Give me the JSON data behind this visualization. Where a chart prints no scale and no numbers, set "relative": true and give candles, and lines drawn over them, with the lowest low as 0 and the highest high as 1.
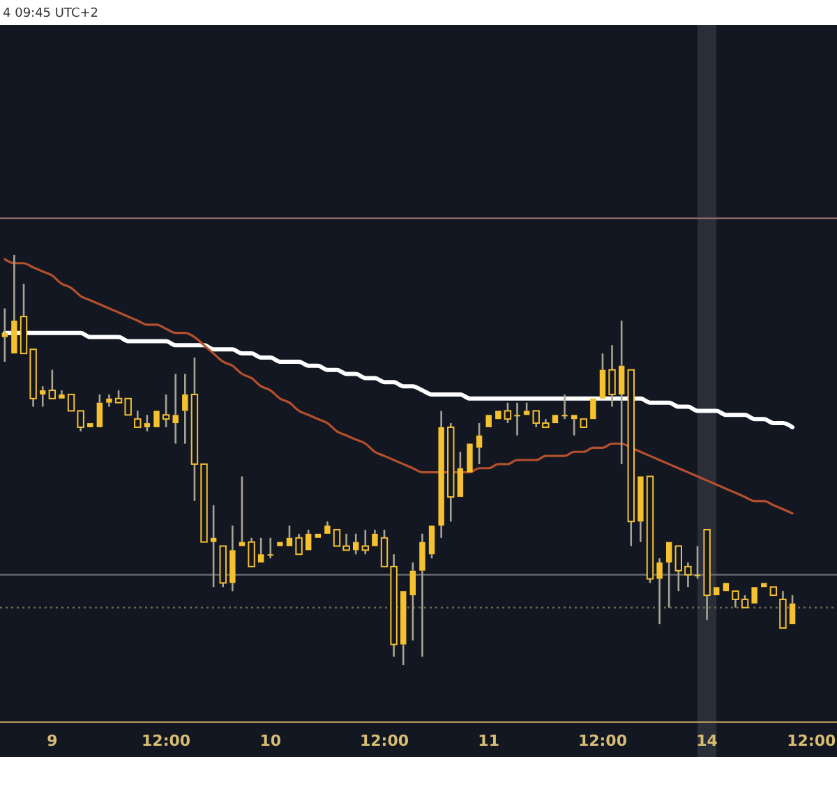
{
  "chart_data": {
    "type": "candlestick",
    "relative": true,
    "color": "#f5c12e",
    "annotations": [
      "4 09:45 UTC+2"
    ],
    "categories": [
      null,
      null,
      null,
      null,
      null,
      "9",
      null,
      null,
      null,
      null,
      null,
      null,
      null,
      null,
      null,
      null,
      null,
      "12:00",
      null,
      null,
      null,
      null,
      null,
      null,
      null,
      null,
      null,
      null,
      "10",
      null,
      null,
      null,
      null,
      null,
      null,
      null,
      null,
      null,
      null,
      null,
      "12:00",
      null,
      null,
      null,
      null,
      null,
      null,
      null,
      null,
      null,
      null,
      "11",
      null,
      null,
      null,
      null,
      null,
      null,
      null,
      null,
      null,
      null,
      null,
      "12:00",
      null,
      null,
      null,
      null,
      null,
      null,
      null,
      null,
      null,
      null,
      "14",
      null,
      null,
      null,
      null,
      null,
      null,
      null,
      null,
      null,
      null,
      "12:00"
    ],
    "ohlc": [
      [
        0.8,
        0.87,
        0.74,
        0.81
      ],
      [
        0.76,
        1.0,
        0.76,
        0.84
      ],
      [
        0.85,
        0.93,
        0.76,
        0.76
      ],
      [
        0.77,
        0.77,
        0.63,
        0.65
      ],
      [
        0.66,
        0.68,
        0.63,
        0.67
      ],
      [
        0.67,
        0.72,
        0.65,
        0.65
      ],
      [
        0.65,
        0.67,
        0.65,
        0.66
      ],
      [
        0.66,
        0.66,
        0.62,
        0.62
      ],
      [
        0.62,
        0.62,
        0.57,
        0.58
      ],
      [
        0.58,
        0.59,
        0.58,
        0.59
      ],
      [
        0.58,
        0.66,
        0.58,
        0.64
      ],
      [
        0.64,
        0.66,
        0.63,
        0.65
      ],
      [
        0.65,
        0.67,
        0.64,
        0.64
      ],
      [
        0.65,
        0.65,
        0.61,
        0.61
      ],
      [
        0.6,
        0.62,
        0.58,
        0.58
      ],
      [
        0.58,
        0.61,
        0.57,
        0.59
      ],
      [
        0.58,
        0.62,
        0.58,
        0.62
      ],
      [
        0.61,
        0.66,
        0.58,
        0.6
      ],
      [
        0.59,
        0.71,
        0.54,
        0.61
      ],
      [
        0.62,
        0.71,
        0.54,
        0.66
      ],
      [
        0.66,
        0.75,
        0.4,
        0.49
      ],
      [
        0.49,
        0.49,
        0.3,
        0.3
      ],
      [
        0.3,
        0.39,
        0.19,
        0.31
      ],
      [
        0.29,
        0.29,
        0.19,
        0.2
      ],
      [
        0.2,
        0.34,
        0.18,
        0.28
      ],
      [
        0.29,
        0.46,
        0.29,
        0.3
      ],
      [
        0.3,
        0.31,
        0.24,
        0.24
      ],
      [
        0.25,
        0.31,
        0.25,
        0.27
      ],
      [
        0.27,
        0.31,
        0.26,
        0.27
      ],
      [
        0.29,
        0.3,
        0.29,
        0.3
      ],
      [
        0.29,
        0.34,
        0.29,
        0.31
      ],
      [
        0.31,
        0.32,
        0.27,
        0.27
      ],
      [
        0.28,
        0.33,
        0.28,
        0.32
      ],
      [
        0.31,
        0.32,
        0.31,
        0.32
      ],
      [
        0.32,
        0.35,
        0.32,
        0.34
      ],
      [
        0.33,
        0.33,
        0.29,
        0.29
      ],
      [
        0.29,
        0.32,
        0.28,
        0.28
      ],
      [
        0.28,
        0.32,
        0.27,
        0.3
      ],
      [
        0.29,
        0.33,
        0.27,
        0.28
      ],
      [
        0.29,
        0.33,
        0.29,
        0.32
      ],
      [
        0.31,
        0.33,
        0.24,
        0.24
      ],
      [
        0.24,
        0.27,
        0.02,
        0.05
      ],
      [
        0.05,
        0.18,
        0.0,
        0.18
      ],
      [
        0.17,
        0.25,
        0.06,
        0.23
      ],
      [
        0.23,
        0.32,
        0.02,
        0.3
      ],
      [
        0.27,
        0.34,
        0.26,
        0.34
      ],
      [
        0.34,
        0.62,
        0.31,
        0.58
      ],
      [
        0.58,
        0.59,
        0.35,
        0.41
      ],
      [
        0.41,
        0.52,
        0.41,
        0.48
      ],
      [
        0.47,
        0.54,
        0.47,
        0.54
      ],
      [
        0.53,
        0.59,
        0.49,
        0.56
      ],
      [
        0.58,
        0.61,
        0.58,
        0.61
      ],
      [
        0.6,
        0.62,
        0.6,
        0.62
      ],
      [
        0.62,
        0.64,
        0.59,
        0.6
      ],
      [
        0.61,
        0.64,
        0.56,
        0.61
      ],
      [
        0.61,
        0.64,
        0.61,
        0.62
      ],
      [
        0.62,
        0.62,
        0.58,
        0.59
      ],
      [
        0.59,
        0.6,
        0.58,
        0.58
      ],
      [
        0.59,
        0.61,
        0.59,
        0.61
      ],
      [
        0.61,
        0.66,
        0.6,
        0.61
      ],
      [
        0.6,
        0.61,
        0.56,
        0.61
      ],
      [
        0.6,
        0.6,
        0.58,
        0.58
      ],
      [
        0.6,
        0.65,
        0.6,
        0.65
      ],
      [
        0.65,
        0.76,
        0.65,
        0.72
      ],
      [
        0.72,
        0.78,
        0.63,
        0.66
      ],
      [
        0.66,
        0.84,
        0.49,
        0.73
      ],
      [
        0.72,
        0.72,
        0.29,
        0.35
      ],
      [
        0.35,
        0.46,
        0.3,
        0.46
      ],
      [
        0.46,
        0.46,
        0.2,
        0.21
      ],
      [
        0.21,
        0.26,
        0.1,
        0.25
      ],
      [
        0.25,
        0.3,
        0.14,
        0.3
      ],
      [
        0.29,
        0.29,
        0.18,
        0.23
      ],
      [
        0.24,
        0.25,
        0.19,
        0.22
      ],
      [
        0.22,
        0.29,
        0.21,
        0.22
      ],
      [
        0.33,
        0.33,
        0.11,
        0.17
      ],
      [
        0.17,
        0.19,
        0.17,
        0.19
      ],
      [
        0.18,
        0.2,
        0.18,
        0.2
      ],
      [
        0.18,
        0.18,
        0.14,
        0.16
      ],
      [
        0.16,
        0.17,
        0.14,
        0.14
      ],
      [
        0.15,
        0.19,
        0.15,
        0.19
      ],
      [
        0.19,
        0.2,
        0.19,
        0.2
      ],
      [
        0.19,
        0.19,
        0.17,
        0.17
      ],
      [
        0.16,
        0.18,
        0.09,
        0.09
      ],
      [
        0.1,
        0.17,
        0.1,
        0.15
      ],
      null,
      null
    ],
    "series": [
      {
        "type": "line",
        "color": "#ffffff",
        "values": [
          0.81,
          0.81,
          0.81,
          0.81,
          0.81,
          0.81,
          0.81,
          0.81,
          0.81,
          0.8,
          0.8,
          0.8,
          0.8,
          0.79,
          0.79,
          0.79,
          0.79,
          0.79,
          0.78,
          0.78,
          0.78,
          0.78,
          0.77,
          0.77,
          0.77,
          0.76,
          0.76,
          0.75,
          0.75,
          0.74,
          0.74,
          0.74,
          0.73,
          0.73,
          0.72,
          0.72,
          0.71,
          0.71,
          0.7,
          0.7,
          0.69,
          0.69,
          0.68,
          0.68,
          0.67,
          0.66,
          0.66,
          0.66,
          0.66,
          0.65,
          0.65,
          0.65,
          0.65,
          0.65,
          0.65,
          0.65,
          0.65,
          0.65,
          0.65,
          0.65,
          0.65,
          0.65,
          0.65,
          0.65,
          0.65,
          0.65,
          0.65,
          0.65,
          0.64,
          0.64,
          0.64,
          0.63,
          0.63,
          0.62,
          0.62,
          0.62,
          0.61,
          0.61,
          0.61,
          0.6,
          0.6,
          0.59,
          0.59,
          0.58,
          null,
          null
        ]
      },
      {
        "type": "line",
        "color": "#b5502c",
        "values": [
          0.99,
          0.98,
          0.98,
          0.97,
          0.96,
          0.95,
          0.93,
          0.92,
          0.9,
          0.89,
          0.88,
          0.87,
          0.86,
          0.85,
          0.84,
          0.83,
          0.83,
          0.82,
          0.81,
          0.81,
          0.8,
          0.78,
          0.76,
          0.74,
          0.73,
          0.71,
          0.7,
          0.68,
          0.67,
          0.65,
          0.64,
          0.62,
          0.61,
          0.6,
          0.59,
          0.57,
          0.56,
          0.55,
          0.54,
          0.52,
          0.51,
          0.5,
          0.49,
          0.48,
          0.47,
          0.47,
          0.47,
          0.47,
          0.47,
          0.47,
          0.48,
          0.48,
          0.49,
          0.49,
          0.5,
          0.5,
          0.5,
          0.51,
          0.51,
          0.51,
          0.52,
          0.52,
          0.53,
          0.53,
          0.54,
          0.54,
          0.53,
          0.52,
          0.51,
          0.5,
          0.49,
          0.48,
          0.47,
          0.46,
          0.45,
          0.44,
          0.43,
          0.42,
          0.41,
          0.4,
          0.4,
          0.39,
          0.38,
          0.37,
          null,
          null
        ]
      }
    ],
    "ref_lines": [
      {
        "axis": "y",
        "value": 1.09,
        "color": "#8a6a66",
        "line_style": "solid"
      },
      {
        "axis": "y",
        "value": 0.22,
        "color": "#6b6e78",
        "line_style": "solid"
      },
      {
        "axis": "y",
        "value": 0.14,
        "color": "#6e6450",
        "line_style": "dotted"
      }
    ],
    "bands": [
      {
        "axis": "x",
        "from": "14",
        "to": "14",
        "color": "#2a2e39"
      }
    ]
  }
}
